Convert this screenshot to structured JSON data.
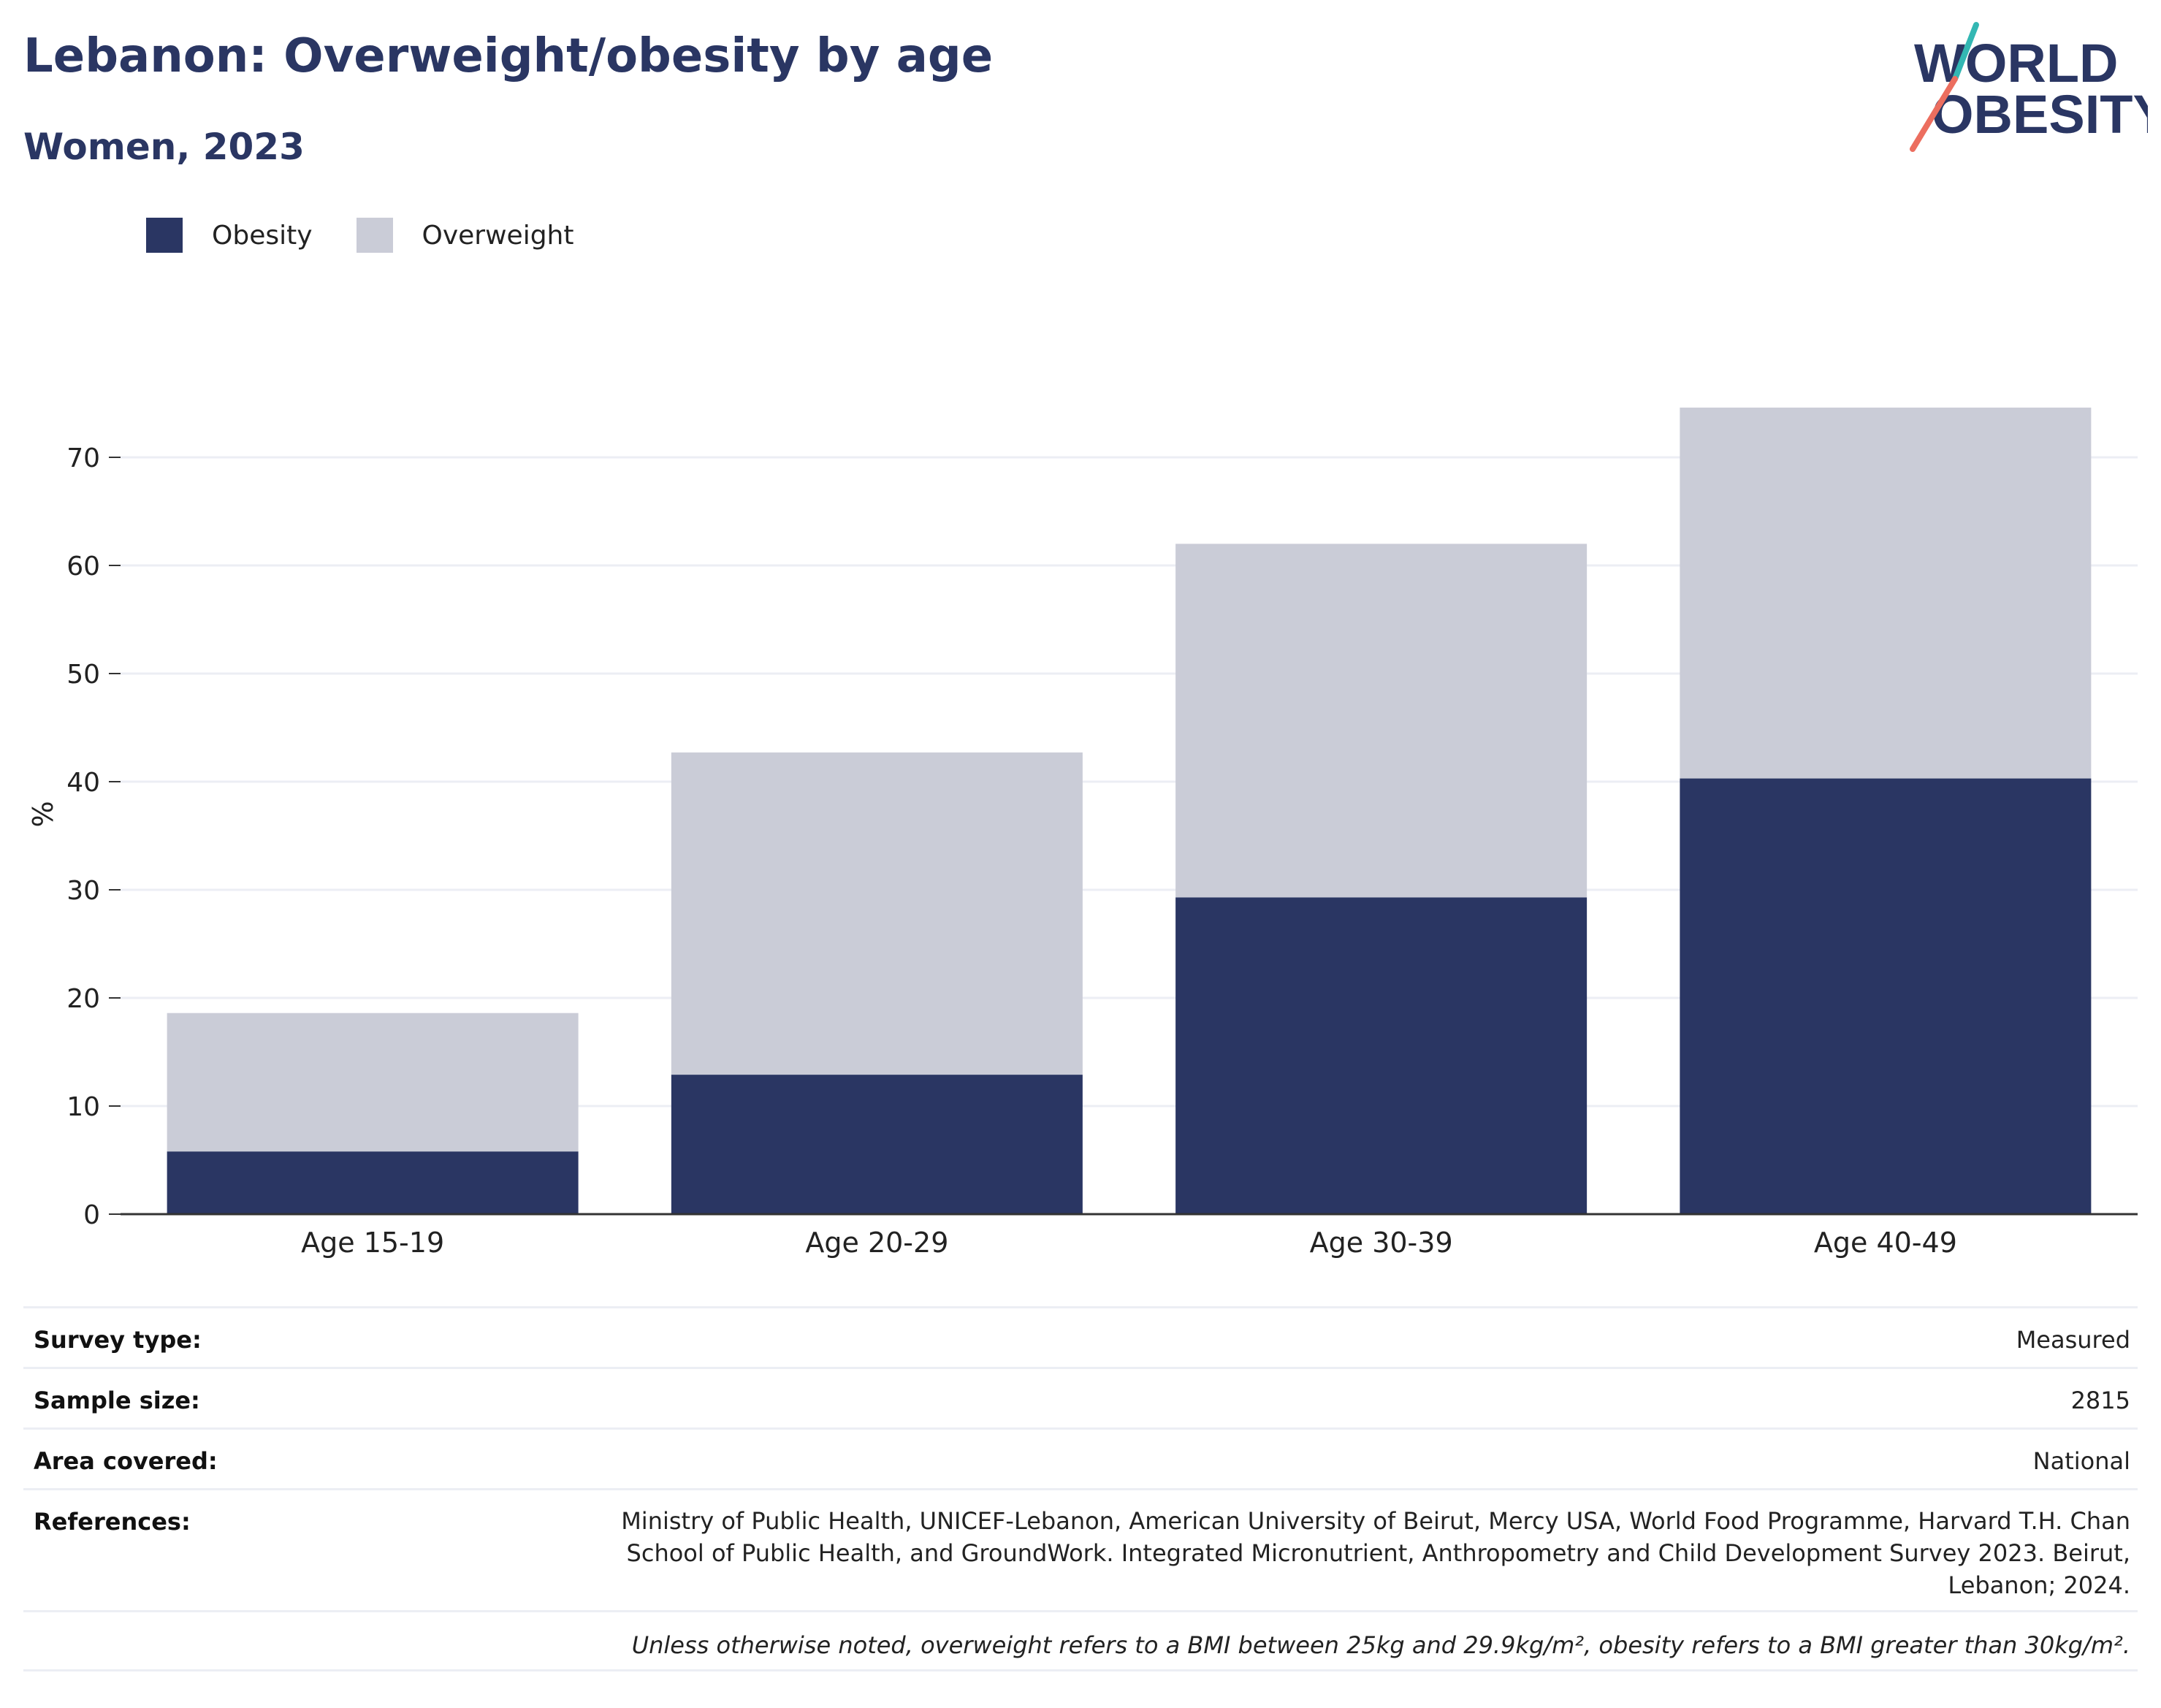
{
  "header": {
    "title": "Lebanon: Overweight/obesity by age",
    "subtitle": "Women, 2023"
  },
  "logo": {
    "line1": "WORLD",
    "line2": "OBESITY"
  },
  "colors": {
    "obesity": "#2a3663",
    "overweight": "#caccd7",
    "title": "#2a3663",
    "gridline": "#eceef4",
    "axis": "#333333",
    "logo_teal": "#33b7b3",
    "logo_coral": "#ec6e5f"
  },
  "chart_data": {
    "type": "bar",
    "stacked": true,
    "categories": [
      "Age 15-19",
      "Age 20-29",
      "Age 30-39",
      "Age 40-49"
    ],
    "series": [
      {
        "name": "Obesity",
        "values": [
          5.8,
          12.9,
          29.3,
          40.3
        ]
      },
      {
        "name": "Overweight",
        "values": [
          12.8,
          29.8,
          32.7,
          34.3
        ]
      }
    ],
    "ylabel": "%",
    "ylim": [
      0,
      75
    ],
    "yticks": [
      0,
      10,
      20,
      30,
      40,
      50,
      60,
      70
    ],
    "grid": true,
    "legend": "top-left"
  },
  "info": {
    "survey_type": {
      "label": "Survey type:",
      "value": "Measured"
    },
    "sample_size": {
      "label": "Sample size:",
      "value": "2815"
    },
    "area_covered": {
      "label": "Area covered:",
      "value": "National"
    },
    "references": {
      "label": "References:",
      "value": "Ministry of Public Health, UNICEF-Lebanon, American University of Beirut, Mercy USA, World Food Programme, Harvard T.H. Chan School of Public Health, and GroundWork. Integrated Micronutrient, Anthropometry and Child Development Survey 2023. Beirut, Lebanon; 2024."
    },
    "note": "Unless otherwise noted, overweight refers to a BMI between 25kg and 29.9kg/m², obesity refers to a BMI greater than 30kg/m²."
  }
}
